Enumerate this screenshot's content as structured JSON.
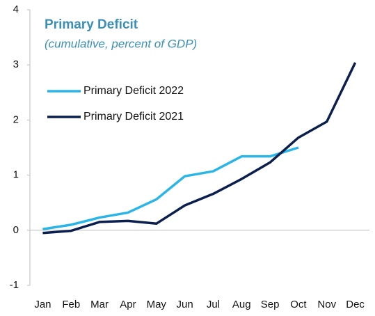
{
  "chart_data": {
    "type": "line",
    "title": "Primary Deficit",
    "subtitle": "(cumulative, percent of GDP)",
    "categories": [
      "Jan",
      "Feb",
      "Mar",
      "Apr",
      "May",
      "Jun",
      "Jul",
      "Aug",
      "Sep",
      "Oct",
      "Nov",
      "Dec"
    ],
    "series": [
      {
        "name": "Primary Deficit 2022",
        "color": "#29b5e8",
        "values": [
          0.02,
          0.1,
          0.23,
          0.32,
          0.56,
          0.98,
          1.07,
          1.34,
          1.34,
          1.5,
          null,
          null
        ]
      },
      {
        "name": "Primary Deficit 2021",
        "color": "#0b1f4f",
        "values": [
          -0.05,
          -0.01,
          0.15,
          0.17,
          0.12,
          0.45,
          0.66,
          0.93,
          1.23,
          1.68,
          1.97,
          3.04
        ]
      }
    ],
    "ylim": [
      -1,
      4
    ],
    "yticks": [
      -1,
      0,
      1,
      2,
      3,
      4
    ],
    "grid": false
  }
}
